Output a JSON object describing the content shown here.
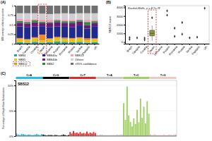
{
  "chart_data": [
    {
      "type": "bar",
      "stacked": true,
      "panel_label": "(A)",
      "ylabel": "SBS average relative proportion",
      "categories": [
        "Brazil",
        "Canada",
        "Croatia",
        "Japan",
        "Lithuania",
        "Poland",
        "Romania",
        "Russia",
        "Serbia",
        "Thailand",
        "UK"
      ],
      "series": [
        {
          "name": "SBS4",
          "color": "#2aa39c",
          "values": [
            0.04,
            0.03,
            0.05,
            0.03,
            0.04,
            0.06,
            0.05,
            0.04,
            0.05,
            0.03,
            0.04
          ]
        },
        {
          "name": "SBS5",
          "color": "#e8c21a",
          "values": [
            0.08,
            0.07,
            0.09,
            0.06,
            0.08,
            0.09,
            0.07,
            0.08,
            0.1,
            0.06,
            0.08
          ]
        },
        {
          "name": "SBS12",
          "color": "#f08a24",
          "values": [
            0.03,
            0.02,
            0.03,
            0.15,
            0.02,
            0.03,
            0.04,
            0.03,
            0.02,
            0.05,
            0.02
          ]
        },
        {
          "name": "SBS40a",
          "color": "#1f2a8c",
          "values": [
            0.3,
            0.32,
            0.28,
            0.22,
            0.3,
            0.27,
            0.3,
            0.28,
            0.31,
            0.26,
            0.32
          ]
        },
        {
          "name": "SBS40b",
          "color": "#6a1a7a",
          "values": [
            0.1,
            0.09,
            0.11,
            0.08,
            0.1,
            0.12,
            0.09,
            0.11,
            0.1,
            0.09,
            0.08
          ]
        },
        {
          "name": "SBS2",
          "color": "#2e8b3a",
          "values": [
            0.05,
            0.04,
            0.06,
            0.04,
            0.03,
            0.05,
            0.04,
            0.05,
            0.04,
            0.08,
            0.05
          ]
        },
        {
          "name": "SBS13",
          "color": "#f2a0c0",
          "values": [
            0.05,
            0.06,
            0.04,
            0.05,
            0.06,
            0.04,
            0.05,
            0.05,
            0.04,
            0.06,
            0.05
          ]
        },
        {
          "name": "Others",
          "color": "#cfcfcf",
          "values": [
            0.15,
            0.17,
            0.14,
            0.16,
            0.15,
            0.13,
            0.16,
            0.15,
            0.14,
            0.17,
            0.16
          ]
        },
        {
          "name": "<95% confidence",
          "color": "#707070",
          "values": [
            0.2,
            0.2,
            0.2,
            0.21,
            0.22,
            0.21,
            0.2,
            0.21,
            0.2,
            0.2,
            0.2
          ]
        }
      ],
      "ylim": [
        0,
        1
      ],
      "yticks": [
        0,
        0.25,
        0.5,
        0.75,
        1
      ],
      "legend": "bottom",
      "highlight": "Japan",
      "highlight_series": "SBS12"
    },
    {
      "type": "box",
      "panel_label": "(B)",
      "ylabel": "SBS12 count",
      "annotation": "Kruskal-Wallis, p = 4.7e-78",
      "categories": [
        "Brazil",
        "Canada",
        "Croatia",
        "Japan",
        "Lithuania",
        "Poland",
        "Romania",
        "Russia",
        "Serbia",
        "Thailand",
        "UK"
      ],
      "boxes": [
        null,
        null,
        null,
        {
          "whisker_low": 150,
          "q1": 700,
          "median": 1000,
          "q3": 1350,
          "whisker_high": 1900
        },
        null,
        null,
        null,
        null,
        null,
        null,
        null
      ],
      "points": [
        [
          520,
          300
        ],
        [
          480
        ],
        [
          450,
          250
        ],
        [
          2800
        ],
        [],
        [
          3600,
          3100
        ],
        [
          1600,
          650
        ],
        [
          2250,
          900
        ],
        [
          480
        ],
        [
          560
        ],
        [
          3900
        ]
      ],
      "color": "#8a9a3a",
      "ylim": [
        -200,
        4200
      ],
      "yticks": [
        0,
        1000,
        2000,
        3000,
        4000
      ],
      "highlight": "Japan"
    },
    {
      "type": "bar",
      "panel_label": "(C)",
      "title": "SBS12",
      "ylabel": "Percentage of Single Base Substitutions",
      "series": [
        {
          "name": "C>A",
          "color": "#1ebff0",
          "values": [
            0.5,
            0.3,
            0.2,
            0.4,
            0.4,
            0.3,
            0.2,
            0.3,
            0.3,
            0.2,
            0.2,
            0.3,
            0.4,
            0.3,
            0.2,
            0.4
          ]
        },
        {
          "name": "C>G",
          "color": "#050708",
          "values": [
            0.3,
            0.2,
            0.1,
            0.2,
            0.2,
            0.2,
            0.1,
            0.2,
            0.2,
            0.1,
            0.1,
            0.2,
            0.3,
            0.2,
            0.1,
            0.2
          ]
        },
        {
          "name": "C>T",
          "color": "#e62725",
          "values": [
            0.8,
            0.5,
            1.0,
            0.6,
            0.7,
            0.5,
            0.8,
            0.5,
            0.6,
            0.5,
            0.9,
            0.5,
            0.7,
            0.5,
            0.8,
            0.6
          ]
        },
        {
          "name": "T>A",
          "color": "#cbcacb",
          "values": [
            0.3,
            0.2,
            0.3,
            0.3,
            0.2,
            0.2,
            0.2,
            0.2,
            0.2,
            0.2,
            0.2,
            0.2,
            0.3,
            0.2,
            0.3,
            0.3
          ]
        },
        {
          "name": "T>C",
          "color": "#a1cf64",
          "values": [
            6.5,
            3.2,
            9.8,
            4.1,
            2.8,
            1.9,
            3.5,
            2.4,
            5.2,
            2.7,
            7.4,
            3.6,
            5.8,
            2.5,
            6.9,
            4.4
          ]
        },
        {
          "name": "T>G",
          "color": "#edc8c5",
          "values": [
            0.4,
            0.2,
            0.3,
            0.3,
            0.2,
            0.2,
            0.2,
            0.2,
            0.3,
            0.2,
            0.2,
            0.3,
            0.3,
            0.2,
            0.3,
            0.4
          ]
        }
      ],
      "ylim": [
        0,
        11
      ],
      "yticks": [
        {
          "value": 0,
          "label": "0%"
        },
        {
          "value": 5,
          "label": "5%"
        },
        {
          "value": 10,
          "label": "10%"
        }
      ],
      "tick_labels": "y"
    }
  ]
}
